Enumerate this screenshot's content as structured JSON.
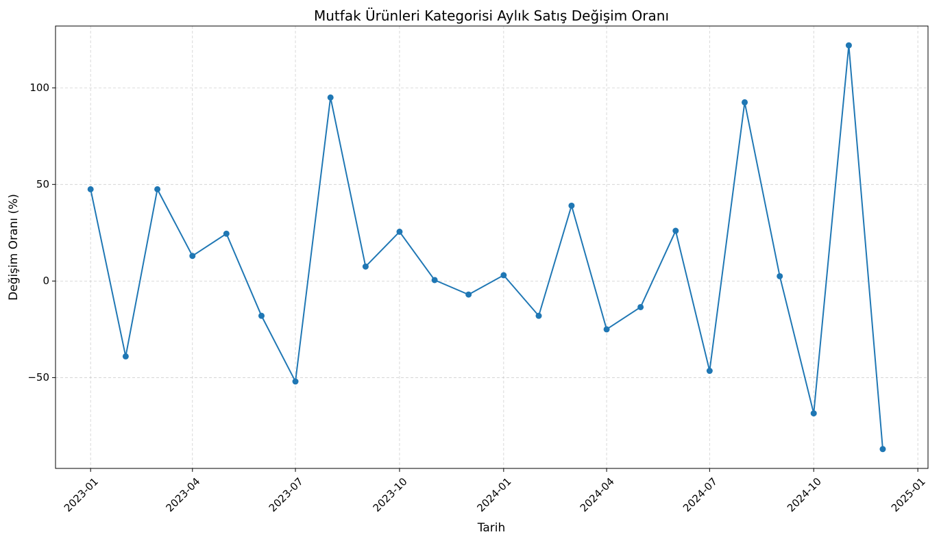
{
  "chart_data": {
    "type": "line",
    "title": "Mutfak Ürünleri Kategorisi Aylık Satış Değişim Oranı",
    "xlabel": "Tarih",
    "ylabel": "Değişim Oranı (%)",
    "x": [
      "2023-01",
      "2023-02",
      "2023-03",
      "2023-04",
      "2023-05",
      "2023-06",
      "2023-07",
      "2023-08",
      "2023-09",
      "2023-10",
      "2023-11",
      "2023-12",
      "2024-01",
      "2024-02",
      "2024-03",
      "2024-04",
      "2024-05",
      "2024-06",
      "2024-07",
      "2024-08",
      "2024-09",
      "2024-10",
      "2024-11",
      "2024-12"
    ],
    "series": [
      {
        "values": [
          47.5,
          -39,
          47.5,
          13,
          24.5,
          -18,
          -52,
          95,
          7.5,
          25.5,
          0.5,
          -7,
          3,
          -18,
          39,
          -25,
          -13.5,
          26,
          -46.5,
          92.5,
          2.5,
          -68.5,
          122,
          -87
        ],
        "color": "#1f77b4",
        "marker": "circle"
      }
    ],
    "xticks": [
      "2023-01",
      "2023-04",
      "2023-07",
      "2023-10",
      "2024-01",
      "2024-04",
      "2024-07",
      "2024-10",
      "2025-01"
    ],
    "yticks": [
      -50,
      0,
      50,
      100
    ],
    "ytick_labels": [
      "−50",
      "0",
      "50",
      "100"
    ],
    "ylim": [
      -97,
      132
    ],
    "xlim": [
      "2022-12-01",
      "2025-01-10"
    ],
    "grid": true,
    "legend": false
  }
}
